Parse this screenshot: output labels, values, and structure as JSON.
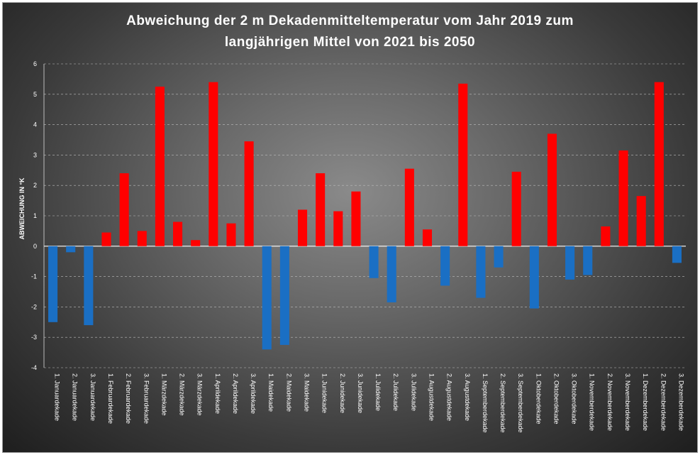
{
  "chart_data": {
    "type": "bar",
    "title": "Abweichung der 2 m Dekadenmitteltemperatur vom Jahr 2019 zum langjährigen Mittel von 2021 bis 2050",
    "title_lines": [
      "Abweichung der 2 m Dekadenmitteltemperatur  vom Jahr 2019 zum",
      "langjährigen Mittel von 2021 bis 2050"
    ],
    "ylabel": "ABWEICHUNG IN °K",
    "xlabel": "",
    "ylim": [
      -4,
      6
    ],
    "yticks": [
      -4,
      -3,
      -2,
      -1,
      0,
      1,
      2,
      3,
      4,
      5,
      6
    ],
    "grid": true,
    "legend": "none",
    "positive_color": "#ff0000",
    "negative_color": "#1a6fc4",
    "categories": [
      "1. Januardekade",
      "2. Januardekade",
      "3. Januardekade",
      "1. Februardekade",
      "2. Februardekade",
      "3. Februardekade",
      "1. Märzdekade",
      "2. Märzdekade",
      "3. Märzdekade",
      "1. Aprildekade",
      "2. Aprildekade",
      "3. Aprildekade",
      "1. Maidekade",
      "2. Maidekade",
      "3. Maidekade",
      "1. Junidekade",
      "2. Junidekade",
      "3. Junidekade",
      "1. Julidekade",
      "2. Julidekade",
      "3. Julidekade",
      "1. Augustdekade",
      "2. Augustdekade",
      "3. Augustdekade",
      "1. Septemberdekade",
      "2. Septemberdekade",
      "3. Septemberdekade",
      "1. Oktoberdekade",
      "2. Oktoberdekade",
      "3. Oktoberdekade",
      "1. Novemberdekade",
      "2. Novemberdekade",
      "3. Novemberdekade",
      "1. Dezemberdekade",
      "2. Dezemberdekade",
      "3. Dezemberdekade"
    ],
    "values": [
      -2.5,
      -0.2,
      -2.6,
      0.45,
      2.4,
      0.5,
      5.25,
      0.8,
      0.2,
      5.4,
      0.75,
      3.45,
      -3.4,
      -3.25,
      1.2,
      2.4,
      1.15,
      1.8,
      -1.05,
      -1.85,
      2.55,
      0.55,
      -1.3,
      5.35,
      -1.7,
      -0.7,
      2.45,
      -2.05,
      3.7,
      -1.1,
      -0.95,
      0.65,
      3.15,
      1.65,
      5.4,
      -0.55
    ]
  }
}
